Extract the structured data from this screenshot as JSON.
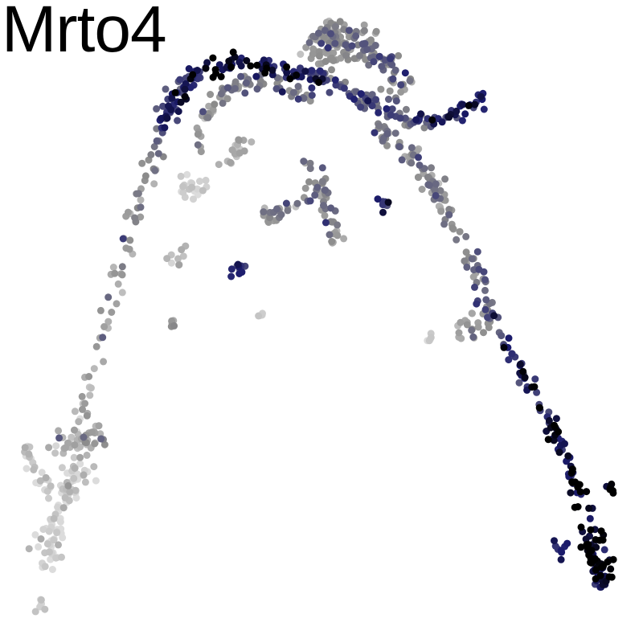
{
  "chart_data": {
    "type": "scatter",
    "title": "Mrto4",
    "xlabel": "",
    "ylabel": "",
    "axes_visible": false,
    "grid": false,
    "legend": "none",
    "color_scale": {
      "low": "#dcdcdc",
      "mid": "#8a8a8a",
      "high_mid": "#1c1c6e",
      "high": "#000000"
    },
    "xlim": [
      0,
      800
    ],
    "ylim": [
      0,
      800
    ],
    "y_axis_direction": "down",
    "point_radius": 4.5,
    "trajectory_segments": [
      {
        "name": "left-arm",
        "path": [
          [
            52,
            765
          ],
          [
            58,
            700
          ],
          [
            70,
            640
          ],
          [
            92,
            560
          ],
          [
            108,
            500
          ],
          [
            125,
            420
          ],
          [
            150,
            330
          ],
          [
            170,
            260
          ],
          [
            190,
            190
          ],
          [
            215,
            120
          ],
          [
            250,
            88
          ]
        ],
        "spread": 10,
        "n": 130,
        "expr_path": [
          0.0,
          0.02,
          0.05,
          0.12,
          0.22,
          0.3,
          0.36,
          0.42,
          0.5,
          0.65,
          0.8
        ]
      },
      {
        "name": "left-arm-outer",
        "path": [
          [
            30,
            555
          ],
          [
            45,
            590
          ],
          [
            65,
            610
          ]
        ],
        "spread": 8,
        "n": 25,
        "expr_path": [
          0.05,
          0.05,
          0.08
        ]
      },
      {
        "name": "left-bulge",
        "path": [
          [
            70,
            560
          ],
          [
            100,
            545
          ],
          [
            125,
            545
          ]
        ],
        "spread": 12,
        "n": 40,
        "expr_path": [
          0.15,
          0.3,
          0.35
        ]
      },
      {
        "name": "left-lower-body",
        "path": [
          [
            55,
            700
          ],
          [
            70,
            650
          ],
          [
            85,
            610
          ],
          [
            100,
            580
          ]
        ],
        "spread": 14,
        "n": 70,
        "expr_path": [
          0.0,
          0.02,
          0.06,
          0.12
        ]
      },
      {
        "name": "top-arc",
        "path": [
          [
            200,
            150
          ],
          [
            230,
            110
          ],
          [
            260,
            85
          ],
          [
            300,
            75
          ],
          [
            340,
            85
          ],
          [
            370,
            95
          ],
          [
            400,
            100
          ],
          [
            440,
            120
          ],
          [
            470,
            130
          ]
        ],
        "spread": 9,
        "n": 140,
        "expr_path": [
          0.7,
          0.82,
          0.9,
          0.92,
          0.85,
          0.75,
          0.7,
          0.6,
          0.55
        ]
      },
      {
        "name": "top-inner-arc",
        "path": [
          [
            240,
            190
          ],
          [
            260,
            140
          ],
          [
            290,
            105
          ],
          [
            330,
            100
          ],
          [
            360,
            110
          ],
          [
            400,
            130
          ]
        ],
        "spread": 8,
        "n": 70,
        "expr_path": [
          0.35,
          0.4,
          0.45,
          0.5,
          0.5,
          0.5
        ]
      },
      {
        "name": "peak",
        "path": [
          [
            380,
            70
          ],
          [
            400,
            45
          ],
          [
            415,
            35
          ],
          [
            440,
            50
          ],
          [
            470,
            70
          ],
          [
            490,
            90
          ],
          [
            500,
            110
          ]
        ],
        "spread": 14,
        "n": 110,
        "expr_path": [
          0.45,
          0.45,
          0.42,
          0.45,
          0.5,
          0.5,
          0.5
        ]
      },
      {
        "name": "right-branch",
        "path": [
          [
            480,
            140
          ],
          [
            510,
            150
          ],
          [
            540,
            150
          ],
          [
            570,
            140
          ],
          [
            600,
            120
          ]
        ],
        "spread": 8,
        "n": 60,
        "expr_path": [
          0.55,
          0.65,
          0.75,
          0.82,
          0.85
        ]
      },
      {
        "name": "central-drop",
        "path": [
          [
            380,
            200
          ],
          [
            395,
            220
          ],
          [
            405,
            245
          ],
          [
            410,
            270
          ],
          [
            415,
            300
          ]
        ],
        "spread": 8,
        "n": 40,
        "expr_path": [
          0.55,
          0.45,
          0.45,
          0.42,
          0.4
        ]
      },
      {
        "name": "center-left-blob",
        "path": [
          [
            330,
            270
          ],
          [
            360,
            255
          ],
          [
            390,
            240
          ]
        ],
        "spread": 10,
        "n": 30,
        "expr_path": [
          0.35,
          0.4,
          0.45
        ]
      },
      {
        "name": "right-arm",
        "path": [
          [
            470,
            160
          ],
          [
            500,
            180
          ],
          [
            530,
            215
          ],
          [
            550,
            250
          ],
          [
            570,
            290
          ],
          [
            590,
            340
          ],
          [
            610,
            390
          ],
          [
            630,
            430
          ],
          [
            660,
            480
          ],
          [
            690,
            540
          ],
          [
            715,
            600
          ],
          [
            740,
            660
          ],
          [
            760,
            720
          ]
        ],
        "spread": 9,
        "n": 220,
        "expr_path": [
          0.5,
          0.5,
          0.45,
          0.45,
          0.5,
          0.52,
          0.6,
          0.7,
          0.8,
          0.88,
          0.95,
          0.98,
          0.97
        ]
      },
      {
        "name": "right-arm-lower-tail",
        "path": [
          [
            730,
            680
          ],
          [
            745,
            710
          ],
          [
            755,
            730
          ]
        ],
        "spread": 6,
        "n": 50,
        "expr_path": [
          0.95,
          0.9,
          0.85
        ]
      }
    ],
    "clusters": [
      {
        "name": "isolated-center-blue",
        "center": [
          478,
          255
        ],
        "spread": 5,
        "n": 8,
        "expr": 0.8
      },
      {
        "name": "isolated-bottom-right",
        "center": [
          760,
          610
        ],
        "spread": 5,
        "n": 6,
        "expr": 0.98
      },
      {
        "name": "isolated-right-low",
        "center": [
          700,
          682
        ],
        "spread": 6,
        "n": 8,
        "expr": 0.8
      },
      {
        "name": "isolated-pale-1",
        "center": [
          535,
          422
        ],
        "spread": 4,
        "n": 5,
        "expr": 0.05
      },
      {
        "name": "isolated-gray-1",
        "center": [
          213,
          402
        ],
        "spread": 4,
        "n": 5,
        "expr": 0.3
      },
      {
        "name": "isolated-gray-2",
        "center": [
          325,
          392
        ],
        "spread": 4,
        "n": 4,
        "expr": 0.15
      },
      {
        "name": "isolated-gray-3",
        "center": [
          222,
          320
        ],
        "spread": 6,
        "n": 9,
        "expr": 0.2
      },
      {
        "name": "isolated-dark-small",
        "center": [
          298,
          335
        ],
        "spread": 6,
        "n": 10,
        "expr": 0.7
      },
      {
        "name": "pale-left-cluster",
        "center": [
          240,
          235
        ],
        "spread": 10,
        "n": 20,
        "expr": 0.05
      },
      {
        "name": "pale-upper-cluster",
        "center": [
          295,
          190
        ],
        "spread": 10,
        "n": 18,
        "expr": 0.25
      },
      {
        "name": "right-arm-knot",
        "center": [
          585,
          408
        ],
        "spread": 10,
        "n": 20,
        "expr": 0.35
      },
      {
        "name": "peak-center-dense",
        "center": [
          420,
          60
        ],
        "spread": 18,
        "n": 60,
        "expr": 0.4
      }
    ]
  }
}
